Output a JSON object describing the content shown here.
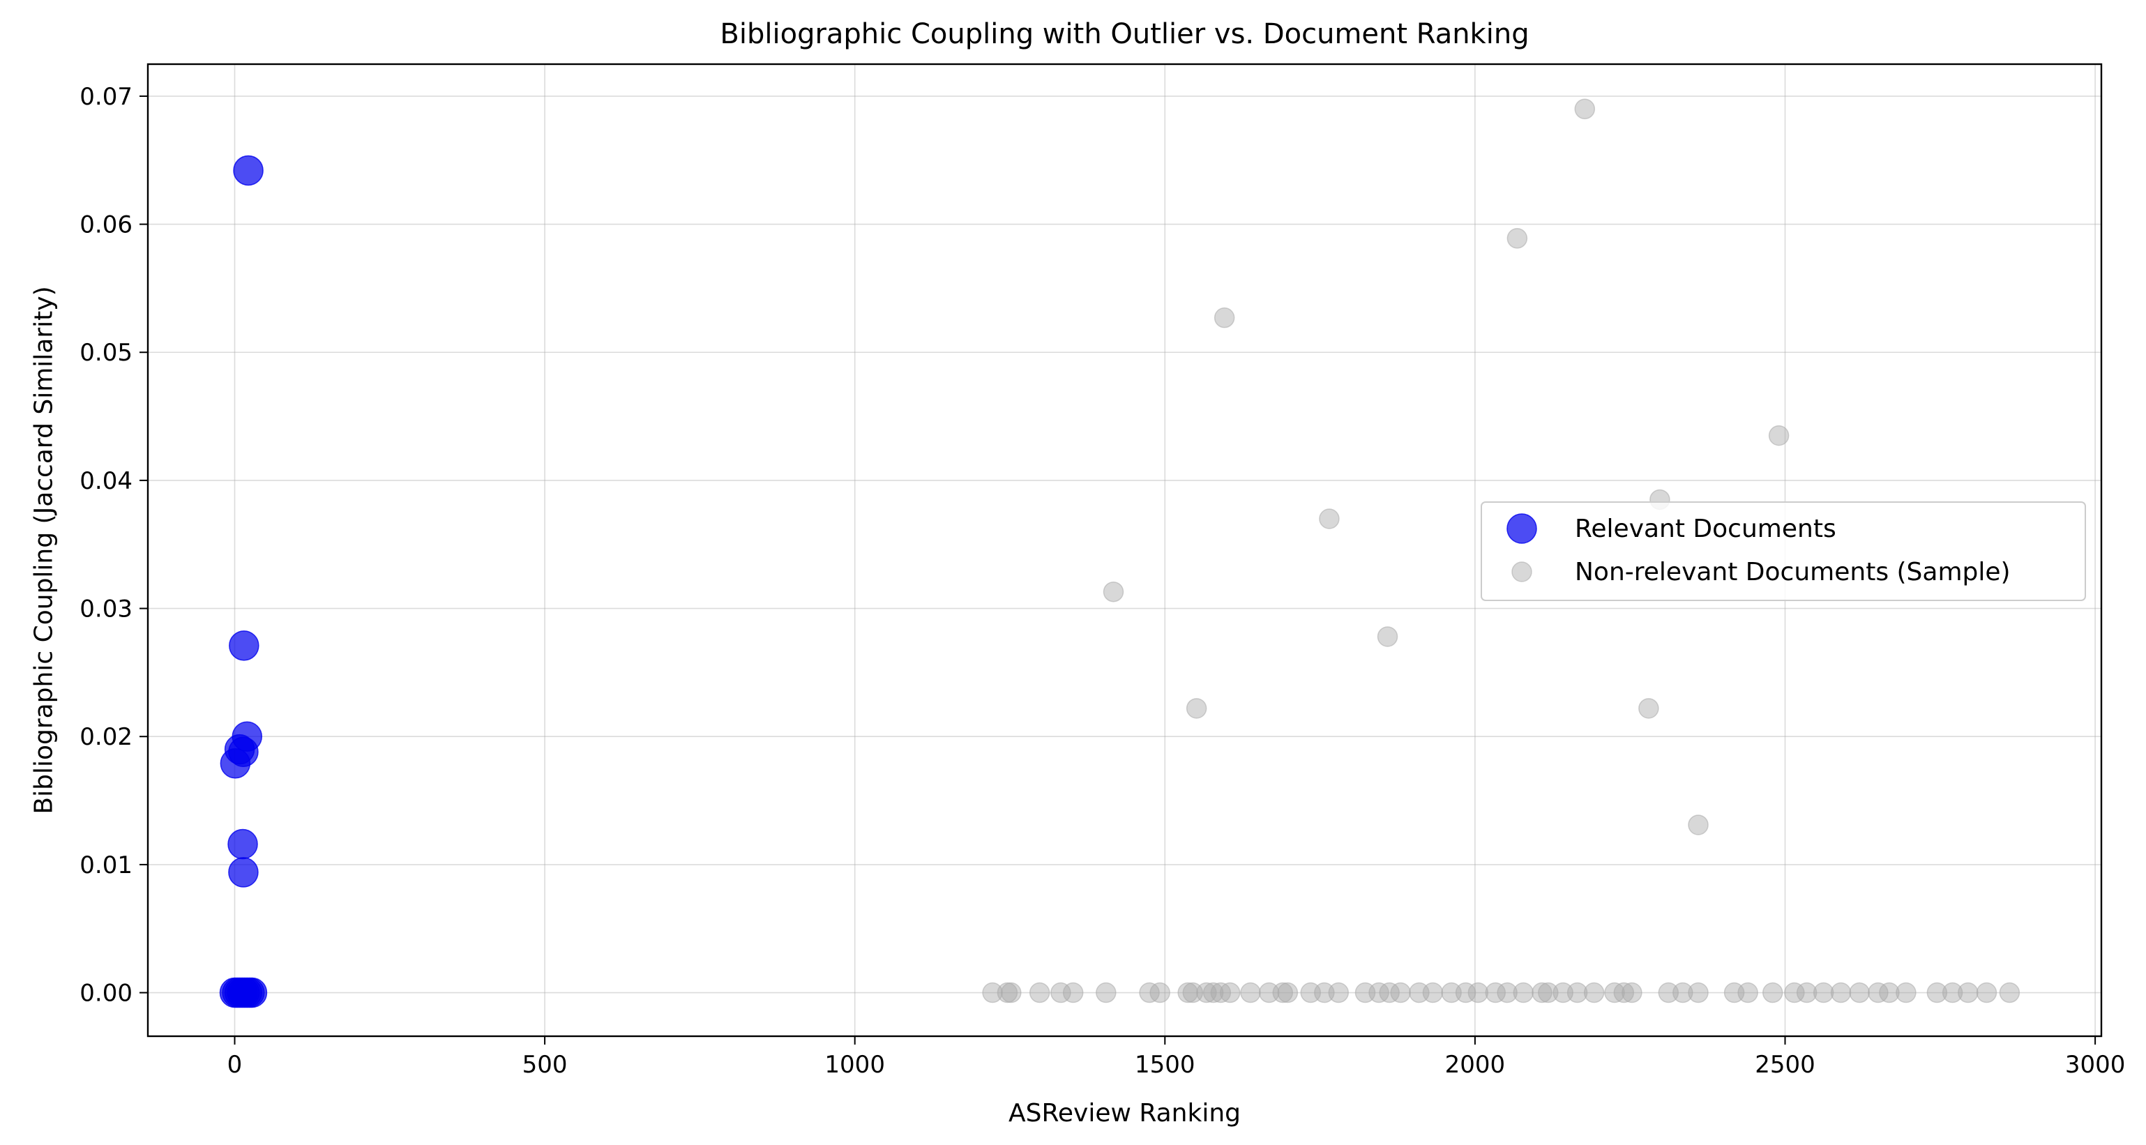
{
  "chart_data": {
    "type": "scatter",
    "title": "Bibliographic Coupling with Outlier vs. Document Ranking",
    "xlabel": "ASReview Ranking",
    "ylabel": "Bibliographic Coupling (Jaccard Similarity)",
    "xlim": [
      -140,
      3010
    ],
    "ylim": [
      -0.0034,
      0.0725
    ],
    "x_ticks": [
      0,
      500,
      1000,
      1500,
      2000,
      2500,
      3000
    ],
    "x_tick_labels": [
      "0",
      "500",
      "1000",
      "1500",
      "2000",
      "2500",
      "3000"
    ],
    "y_ticks": [
      0.0,
      0.01,
      0.02,
      0.03,
      0.04,
      0.05,
      0.06,
      0.07
    ],
    "y_tick_labels": [
      "0.00",
      "0.01",
      "0.02",
      "0.03",
      "0.04",
      "0.05",
      "0.06",
      "0.07"
    ],
    "grid": true,
    "legend_position": "center-right",
    "series": [
      {
        "name": "Relevant Documents",
        "color": "#0000ee",
        "opacity": 0.7,
        "marker": "large-circle",
        "points": [
          {
            "x": 22,
            "y": 0.0642
          },
          {
            "x": 15,
            "y": 0.0271
          },
          {
            "x": 20,
            "y": 0.02
          },
          {
            "x": 8,
            "y": 0.019
          },
          {
            "x": 14,
            "y": 0.0188
          },
          {
            "x": 1,
            "y": 0.0179
          },
          {
            "x": 13,
            "y": 0.0116
          },
          {
            "x": 14,
            "y": 0.0094
          },
          {
            "x": 0,
            "y": 0.0
          },
          {
            "x": 4,
            "y": 0.0
          },
          {
            "x": 8,
            "y": 0.0
          },
          {
            "x": 12,
            "y": 0.0
          },
          {
            "x": 16,
            "y": 0.0
          },
          {
            "x": 20,
            "y": 0.0
          },
          {
            "x": 24,
            "y": 0.0
          },
          {
            "x": 28,
            "y": 0.0
          }
        ]
      },
      {
        "name": "Non-relevant Documents (Sample)",
        "color": "#a9a9a9",
        "opacity": 0.45,
        "marker": "circle",
        "points": [
          {
            "x": 2177,
            "y": 0.069
          },
          {
            "x": 2068,
            "y": 0.0589
          },
          {
            "x": 1596,
            "y": 0.0527
          },
          {
            "x": 2490,
            "y": 0.0435
          },
          {
            "x": 2298,
            "y": 0.0385
          },
          {
            "x": 1765,
            "y": 0.037
          },
          {
            "x": 1417,
            "y": 0.0313
          },
          {
            "x": 1859,
            "y": 0.0278
          },
          {
            "x": 1551,
            "y": 0.0222
          },
          {
            "x": 2280,
            "y": 0.0222
          },
          {
            "x": 2360,
            "y": 0.0131
          },
          {
            "x": 1222,
            "y": 0.0
          },
          {
            "x": 1246,
            "y": 0.0
          },
          {
            "x": 1252,
            "y": 0.0
          },
          {
            "x": 1298,
            "y": 0.0
          },
          {
            "x": 1332,
            "y": 0.0
          },
          {
            "x": 1352,
            "y": 0.0
          },
          {
            "x": 1405,
            "y": 0.0
          },
          {
            "x": 1475,
            "y": 0.0
          },
          {
            "x": 1492,
            "y": 0.0
          },
          {
            "x": 1537,
            "y": 0.0
          },
          {
            "x": 1545,
            "y": 0.0
          },
          {
            "x": 1567,
            "y": 0.0
          },
          {
            "x": 1578,
            "y": 0.0
          },
          {
            "x": 1590,
            "y": 0.0
          },
          {
            "x": 1605,
            "y": 0.0
          },
          {
            "x": 1638,
            "y": 0.0
          },
          {
            "x": 1668,
            "y": 0.0
          },
          {
            "x": 1690,
            "y": 0.0
          },
          {
            "x": 1698,
            "y": 0.0
          },
          {
            "x": 1735,
            "y": 0.0
          },
          {
            "x": 1757,
            "y": 0.0
          },
          {
            "x": 1780,
            "y": 0.0
          },
          {
            "x": 1823,
            "y": 0.0
          },
          {
            "x": 1845,
            "y": 0.0
          },
          {
            "x": 1862,
            "y": 0.0
          },
          {
            "x": 1880,
            "y": 0.0
          },
          {
            "x": 1910,
            "y": 0.0
          },
          {
            "x": 1932,
            "y": 0.0
          },
          {
            "x": 1962,
            "y": 0.0
          },
          {
            "x": 1985,
            "y": 0.0
          },
          {
            "x": 2005,
            "y": 0.0
          },
          {
            "x": 2033,
            "y": 0.0
          },
          {
            "x": 2052,
            "y": 0.0
          },
          {
            "x": 2078,
            "y": 0.0
          },
          {
            "x": 2108,
            "y": 0.0
          },
          {
            "x": 2118,
            "y": 0.0
          },
          {
            "x": 2142,
            "y": 0.0
          },
          {
            "x": 2165,
            "y": 0.0
          },
          {
            "x": 2192,
            "y": 0.0
          },
          {
            "x": 2225,
            "y": 0.0
          },
          {
            "x": 2240,
            "y": 0.0
          },
          {
            "x": 2253,
            "y": 0.0
          },
          {
            "x": 2312,
            "y": 0.0
          },
          {
            "x": 2335,
            "y": 0.0
          },
          {
            "x": 2360,
            "y": 0.0
          },
          {
            "x": 2418,
            "y": 0.0
          },
          {
            "x": 2440,
            "y": 0.0
          },
          {
            "x": 2480,
            "y": 0.0
          },
          {
            "x": 2515,
            "y": 0.0
          },
          {
            "x": 2535,
            "y": 0.0
          },
          {
            "x": 2562,
            "y": 0.0
          },
          {
            "x": 2590,
            "y": 0.0
          },
          {
            "x": 2620,
            "y": 0.0
          },
          {
            "x": 2650,
            "y": 0.0
          },
          {
            "x": 2668,
            "y": 0.0
          },
          {
            "x": 2695,
            "y": 0.0
          },
          {
            "x": 2745,
            "y": 0.0
          },
          {
            "x": 2770,
            "y": 0.0
          },
          {
            "x": 2795,
            "y": 0.0
          },
          {
            "x": 2825,
            "y": 0.0
          },
          {
            "x": 2862,
            "y": 0.0
          }
        ]
      }
    ]
  }
}
